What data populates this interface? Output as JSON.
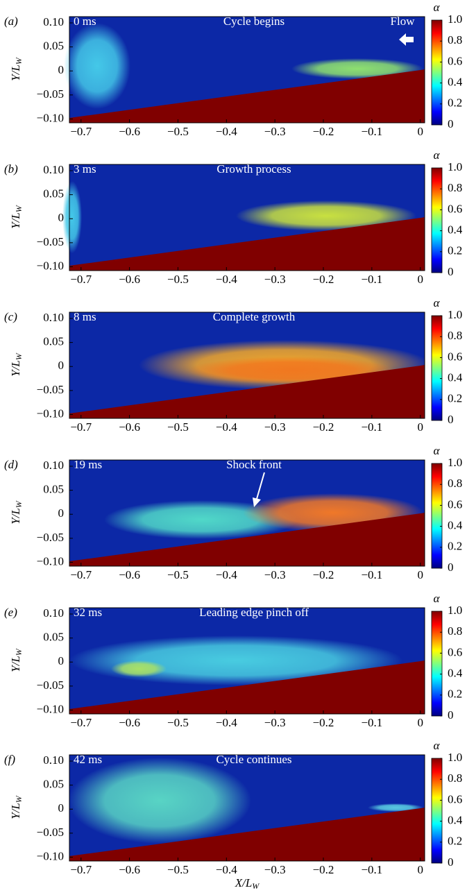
{
  "chart_data": [
    {
      "type": "heatmap",
      "panel_label": "(a)",
      "time_label": "0 ms",
      "annotation": "Cycle begins",
      "flow_label": "Flow",
      "ylabel": "Y/L",
      "ylabel_sub": "W",
      "xlim": [
        -0.724,
        0.009
      ],
      "ylim": [
        -0.108,
        0.113
      ],
      "xticks": [
        {
          "value": -0.7,
          "label": "−0.7"
        },
        {
          "value": -0.6,
          "label": "−0.6"
        },
        {
          "value": -0.5,
          "label": "−0.5"
        },
        {
          "value": -0.4,
          "label": "−0.4"
        },
        {
          "value": -0.3,
          "label": "−0.3"
        },
        {
          "value": -0.2,
          "label": "−0.2"
        },
        {
          "value": -0.1,
          "label": "−0.1"
        },
        0
      ],
      "yticks": [
        {
          "value": 0.1,
          "label": "0.10"
        },
        0.05,
        0,
        {
          "value": -0.05,
          "label": "−0.05"
        },
        {
          "value": -0.1,
          "label": "−0.10"
        }
      ],
      "colorbar_title": "α",
      "colormap": "jet",
      "colorbar_lim": [
        0,
        1
      ],
      "colorbar_ticks": [
        {
          "value": 1,
          "label": "1.0"
        },
        0.8,
        0.6,
        0.4,
        0.2,
        0
      ]
    },
    {
      "type": "heatmap",
      "panel_label": "(b)",
      "time_label": "3 ms",
      "annotation": "Growth process",
      "ylabel": "Y/L",
      "ylabel_sub": "W",
      "xlim": [
        -0.724,
        0.009
      ],
      "ylim": [
        -0.108,
        0.113
      ],
      "xticks": [
        {
          "value": -0.7,
          "label": "−0.7"
        },
        {
          "value": -0.6,
          "label": "−0.6"
        },
        {
          "value": -0.5,
          "label": "−0.5"
        },
        {
          "value": -0.4,
          "label": "−0.4"
        },
        {
          "value": -0.3,
          "label": "−0.3"
        },
        {
          "value": -0.2,
          "label": "−0.2"
        },
        {
          "value": -0.1,
          "label": "−0.1"
        },
        0
      ],
      "yticks": [
        {
          "value": 0.1,
          "label": "0.10"
        },
        0.05,
        0,
        {
          "value": -0.05,
          "label": "−0.05"
        },
        {
          "value": -0.1,
          "label": "−0.10"
        }
      ],
      "colorbar_title": "α",
      "colormap": "jet",
      "colorbar_lim": [
        0,
        1
      ],
      "colorbar_ticks": [
        {
          "value": 1,
          "label": "1.0"
        },
        0.8,
        0.6,
        0.4,
        0.2,
        0
      ]
    },
    {
      "type": "heatmap",
      "panel_label": "(c)",
      "time_label": "8 ms",
      "annotation": "Complete growth",
      "ylabel": "Y/L",
      "ylabel_sub": "W",
      "xlim": [
        -0.724,
        0.009
      ],
      "ylim": [
        -0.108,
        0.113
      ],
      "xticks": [
        {
          "value": -0.7,
          "label": "−0.7"
        },
        {
          "value": -0.6,
          "label": "−0.6"
        },
        {
          "value": -0.5,
          "label": "−0.5"
        },
        {
          "value": -0.4,
          "label": "−0.4"
        },
        {
          "value": -0.3,
          "label": "−0.3"
        },
        {
          "value": -0.2,
          "label": "−0.2"
        },
        {
          "value": -0.1,
          "label": "−0.1"
        },
        0
      ],
      "yticks": [
        {
          "value": 0.1,
          "label": "0.10"
        },
        0.05,
        0,
        {
          "value": -0.05,
          "label": "−0.05"
        },
        {
          "value": -0.1,
          "label": "−0.10"
        }
      ],
      "colorbar_title": "α",
      "colormap": "jet",
      "colorbar_lim": [
        0,
        1
      ],
      "colorbar_ticks": [
        {
          "value": 1,
          "label": "1.0"
        },
        0.8,
        0.6,
        0.4,
        0.2,
        0
      ]
    },
    {
      "type": "heatmap",
      "panel_label": "(d)",
      "time_label": "19 ms",
      "annotation": "Shock front",
      "ylabel": "Y/L",
      "ylabel_sub": "W",
      "xlim": [
        -0.724,
        0.009
      ],
      "ylim": [
        -0.108,
        0.113
      ],
      "xticks": [
        {
          "value": -0.7,
          "label": "−0.7"
        },
        {
          "value": -0.6,
          "label": "−0.6"
        },
        {
          "value": -0.5,
          "label": "−0.5"
        },
        {
          "value": -0.4,
          "label": "−0.4"
        },
        {
          "value": -0.3,
          "label": "−0.3"
        },
        {
          "value": -0.2,
          "label": "−0.2"
        },
        {
          "value": -0.1,
          "label": "−0.1"
        },
        0
      ],
      "yticks": [
        {
          "value": 0.1,
          "label": "0.10"
        },
        0.05,
        0,
        {
          "value": -0.05,
          "label": "−0.05"
        },
        {
          "value": -0.1,
          "label": "−0.10"
        }
      ],
      "colorbar_title": "α",
      "colormap": "jet",
      "colorbar_lim": [
        0,
        1
      ],
      "colorbar_ticks": [
        {
          "value": 1,
          "label": "1.0"
        },
        0.8,
        0.6,
        0.4,
        0.2,
        0
      ]
    },
    {
      "type": "heatmap",
      "panel_label": "(e)",
      "time_label": "32 ms",
      "annotation": "Leading edge pinch off",
      "ylabel": "Y/L",
      "ylabel_sub": "W",
      "xlim": [
        -0.724,
        0.009
      ],
      "ylim": [
        -0.108,
        0.113
      ],
      "xticks": [
        {
          "value": -0.7,
          "label": "−0.7"
        },
        {
          "value": -0.6,
          "label": "−0.6"
        },
        {
          "value": -0.5,
          "label": "−0.5"
        },
        {
          "value": -0.4,
          "label": "−0.4"
        },
        {
          "value": -0.3,
          "label": "−0.3"
        },
        {
          "value": -0.2,
          "label": "−0.2"
        },
        {
          "value": -0.1,
          "label": "−0.1"
        },
        0
      ],
      "yticks": [
        {
          "value": 0.1,
          "label": "0.10"
        },
        0.05,
        0,
        {
          "value": -0.05,
          "label": "−0.05"
        },
        {
          "value": -0.1,
          "label": "−0.10"
        }
      ],
      "colorbar_title": "α",
      "colormap": "jet",
      "colorbar_lim": [
        0,
        1
      ],
      "colorbar_ticks": [
        {
          "value": 1,
          "label": "1.0"
        },
        0.8,
        0.6,
        0.4,
        0.2,
        0
      ]
    },
    {
      "type": "heatmap",
      "panel_label": "(f)",
      "time_label": "42 ms",
      "annotation": "Cycle continues",
      "ylabel": "Y/L",
      "ylabel_sub": "W",
      "xlabel": "X/L",
      "xlabel_sub": "W",
      "xlim": [
        -0.724,
        0.009
      ],
      "ylim": [
        -0.108,
        0.113
      ],
      "xticks": [
        {
          "value": -0.7,
          "label": "−0.7"
        },
        {
          "value": -0.6,
          "label": "−0.6"
        },
        {
          "value": -0.5,
          "label": "−0.5"
        },
        {
          "value": -0.4,
          "label": "−0.4"
        },
        {
          "value": -0.3,
          "label": "−0.3"
        },
        {
          "value": -0.2,
          "label": "−0.2"
        },
        {
          "value": -0.1,
          "label": "−0.1"
        },
        0
      ],
      "yticks": [
        {
          "value": 0.1,
          "label": "0.10"
        },
        0.05,
        0,
        {
          "value": -0.05,
          "label": "−0.05"
        },
        {
          "value": -0.1,
          "label": "−0.10"
        }
      ],
      "colorbar_title": "α",
      "colormap": "jet",
      "colorbar_lim": [
        0,
        1
      ],
      "colorbar_ticks": [
        {
          "value": 1,
          "label": "1.0"
        },
        0.8,
        0.6,
        0.4,
        0.2,
        0
      ]
    }
  ]
}
